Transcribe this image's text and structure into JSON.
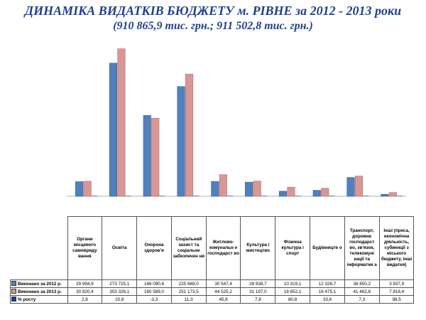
{
  "title": {
    "line1": "ДИНАМІКА ВИДАТКІВ БЮДЖЕТУ м. РІВНЕ за 2012 - 2013 роки",
    "line2": "(910 865,9 тис. грн.; 911 502,8 тис. грн.)"
  },
  "colors": {
    "s2012": "#4f81bd",
    "s2013": "#d99694",
    "growth": "#1f3f8f"
  },
  "chart_data": {
    "type": "bar",
    "categories": [
      "Органи місцевого самовряду вання",
      "Освіта",
      "Охорона здоров'я",
      "Соціальний захист та соціальне забезпечен ня",
      "Житлово-комунальн е господарст во",
      "Культура і мистецтво",
      "Фізична культура і спорт",
      "Будівництв о",
      "Транспорт, дорожнє господарст во, зв'язок, телекомуні кації та інформатик а",
      "Інші (преса, економічна діяльність, субвенції з міського бюджету, інші видатки)"
    ],
    "series": [
      {
        "name": "Виконано за 2012 р.",
        "marker": "#4f81bd",
        "values": [
          29994.9,
          273725.1,
          166090.6,
          225669.0,
          30547.4,
          28938.7,
          10319.1,
          12328.7,
          38650.2,
          3937.9
        ],
        "labels": [
          "29 994,9",
          "273 725,1",
          "166 090,6",
          "225 669,0",
          "30 547,4",
          "28 938,7",
          "10 319,1",
          "12 328,7",
          "38 650,2",
          "3 937,9"
        ]
      },
      {
        "name": "Виконано за 2013 р.",
        "marker": "#d99694",
        "values": [
          30820.4,
          303326.1,
          160589.0,
          251173.5,
          44525.2,
          31197.0,
          18652.1,
          16475.1,
          41462.8,
          7818.4
        ],
        "labels": [
          "30 820,4",
          "303 326,1",
          "160 589,0",
          "251 173,5",
          "44 525,2",
          "31 197,0",
          "18 652,1",
          "16 475,1",
          "41 462,8",
          "7 818,4"
        ]
      },
      {
        "name": "% росту",
        "marker": "#1f3f8f",
        "values": [
          2.8,
          10.8,
          -3.3,
          11.3,
          45.8,
          7.8,
          80.8,
          33.6,
          7.3,
          98.5
        ],
        "labels": [
          "2,8",
          "10,8",
          "-3,3",
          "11,3",
          "45,8",
          "7,8",
          "80,8",
          "33,6",
          "7,3",
          "98,5"
        ]
      }
    ],
    "ylim": [
      0,
      310000
    ],
    "grid": false,
    "legend": "data table below chart"
  }
}
